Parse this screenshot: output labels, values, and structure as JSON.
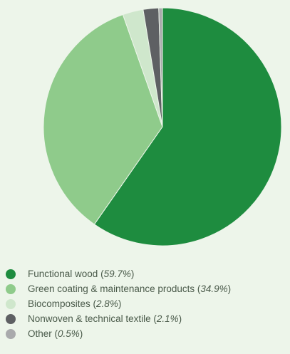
{
  "chart_data": {
    "type": "pie",
    "title": "",
    "start_angle_deg": 0,
    "direction": "clockwise",
    "slices": [
      {
        "label": "Functional wood",
        "value": 59.7,
        "pct_text": "59.7%",
        "color": "#1e8c3f"
      },
      {
        "label": "Green coating & maintenance products",
        "value": 34.9,
        "pct_text": "34.9%",
        "color": "#8fcb8b"
      },
      {
        "label": "Biocomposites",
        "value": 2.8,
        "pct_text": "2.8%",
        "color": "#cfe7cc"
      },
      {
        "label": "Nonwoven & technical textile",
        "value": 2.1,
        "pct_text": "2.1%",
        "color": "#5e6063"
      },
      {
        "label": "Other",
        "value": 0.5,
        "pct_text": "0.5%",
        "color": "#a9aaac"
      }
    ],
    "legend_position": "bottom-left"
  }
}
